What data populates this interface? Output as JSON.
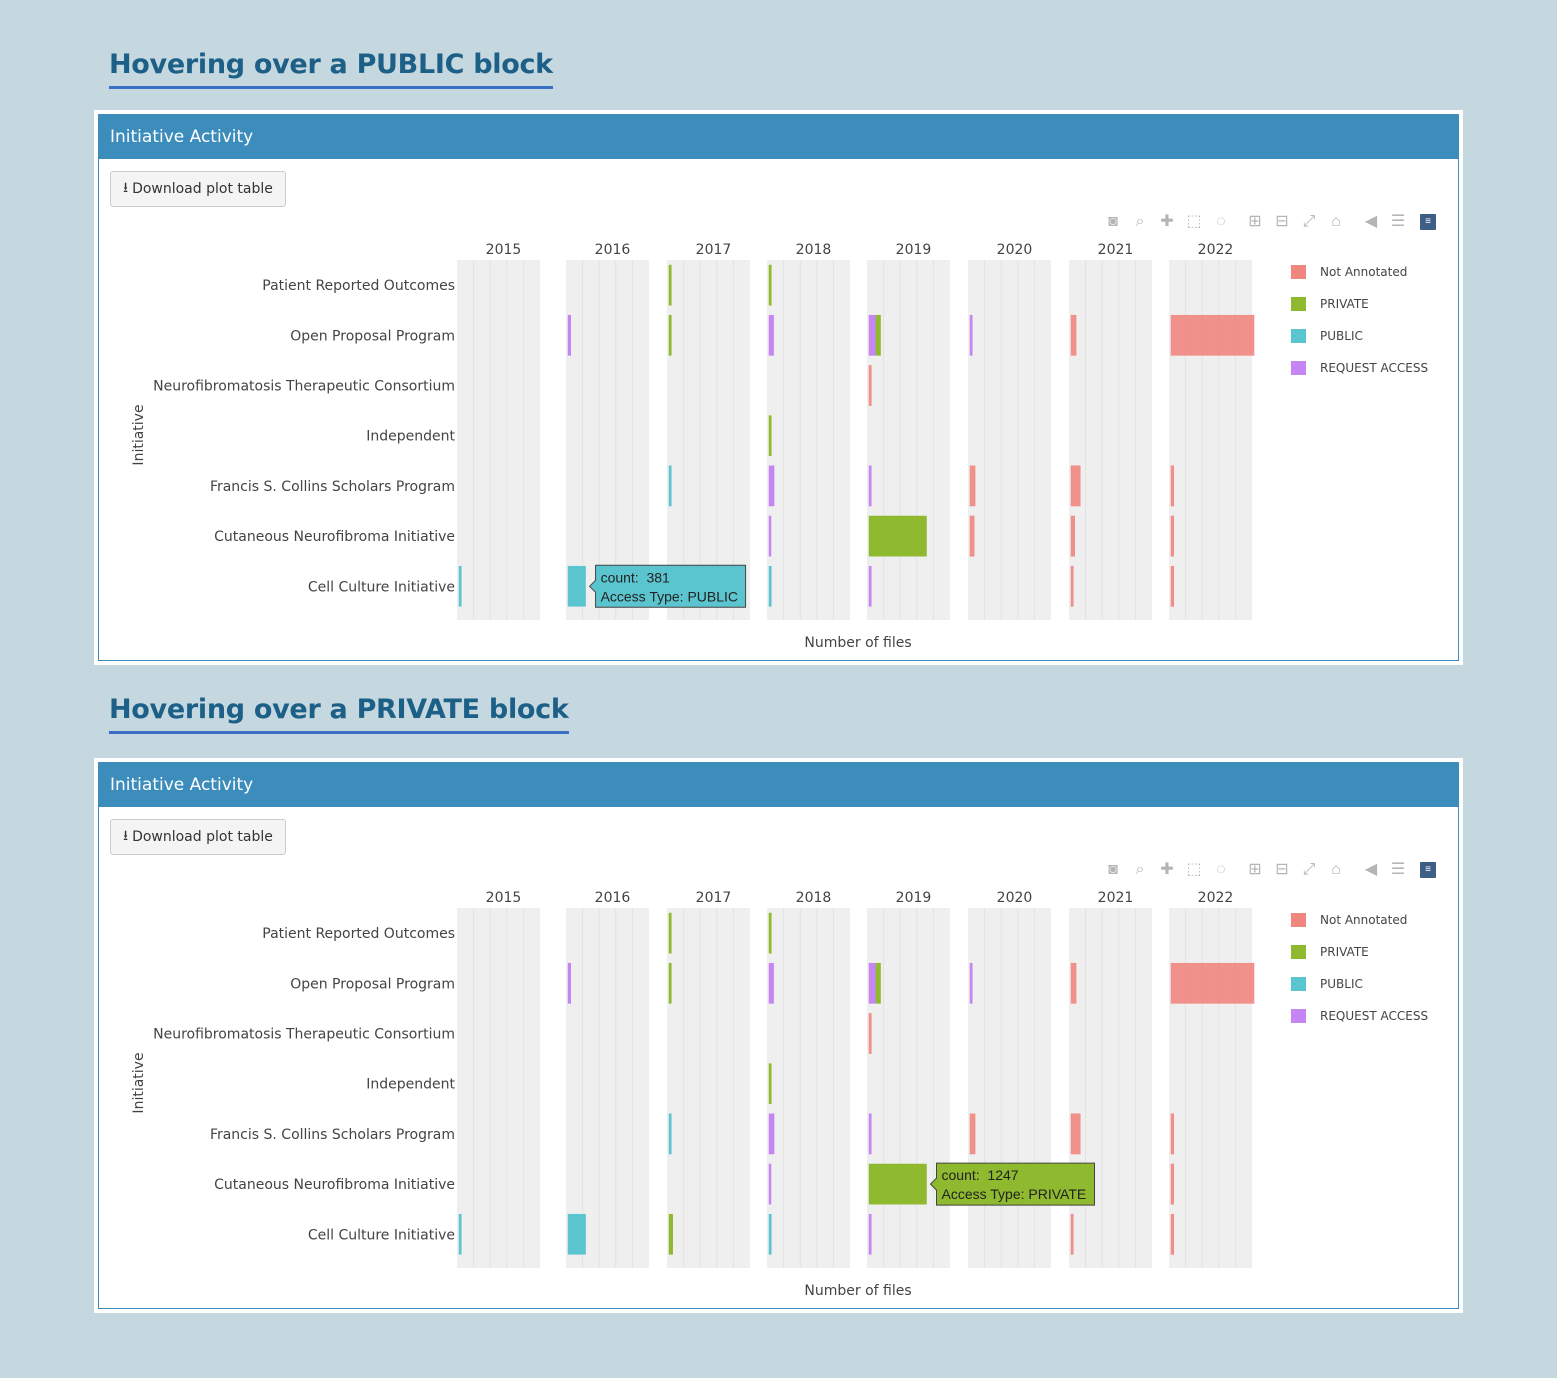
{
  "panels": [
    {
      "heading": "Hovering over a PUBLIC block",
      "title": "Initiative Activity",
      "download_label": "Download plot table",
      "tooltip": {
        "count_label": "count:",
        "count_value": "381",
        "access_label": "Access Type:",
        "access_value": "PUBLIC",
        "facet": "2016",
        "row": "Cell Culture Initiative"
      }
    },
    {
      "heading": "Hovering over a PRIVATE block",
      "title": "Initiative Activity",
      "download_label": "Download plot table",
      "tooltip": {
        "count_label": "count:",
        "count_value": "1247",
        "access_label": "Access Type:",
        "access_value": "PRIVATE",
        "facet": "2019",
        "row": "Cutaneous Neurofibroma Initiative"
      }
    }
  ],
  "modebar": [
    "camera-icon",
    "zoom-icon",
    "pan-icon",
    "box-select-icon",
    "lasso-icon",
    "zoom-in-icon",
    "zoom-out-icon",
    "autoscale-icon",
    "home-icon",
    "spike-lines-icon",
    "compare-hover-icon",
    "plotly-logo-icon"
  ],
  "colors": {
    "Not Annotated": "#ef8680",
    "PRIVATE": "#8fb92e",
    "PUBLIC": "#5bc5cf",
    "REQUEST ACCESS": "#c585f2"
  },
  "chart_data": {
    "type": "bar",
    "orientation": "horizontal",
    "facets": [
      "2015",
      "2016",
      "2017",
      "2018",
      "2019",
      "2020",
      "2021",
      "2022"
    ],
    "categories": [
      "Patient Reported Outcomes",
      "Open Proposal Program",
      "Neurofibromatosis Therapeutic Consortium",
      "Independent",
      "Francis S. Collins Scholars Program",
      "Cutaneous Neurofibroma Initiative",
      "Cell Culture Initiative"
    ],
    "ylabel": "Initiative",
    "xlabel": "Number of files",
    "legend": [
      "Not Annotated",
      "PRIVATE",
      "PUBLIC",
      "REQUEST ACCESS"
    ],
    "legend_position": "right",
    "grid": true,
    "bars": [
      {
        "facet": "2015",
        "category": "Cell Culture Initiative",
        "series": "PUBLIC",
        "value": 50
      },
      {
        "facet": "2016",
        "category": "Open Proposal Program",
        "series": "REQUEST ACCESS",
        "value": 60
      },
      {
        "facet": "2016",
        "category": "Cell Culture Initiative",
        "series": "PUBLIC",
        "value": 381
      },
      {
        "facet": "2017",
        "category": "Patient Reported Outcomes",
        "series": "PRIVATE",
        "value": 50
      },
      {
        "facet": "2017",
        "category": "Open Proposal Program",
        "series": "PRIVATE",
        "value": 50
      },
      {
        "facet": "2017",
        "category": "Francis S. Collins Scholars Program",
        "series": "PUBLIC",
        "value": 50
      },
      {
        "facet": "2017",
        "category": "Cell Culture Initiative",
        "series": "PRIVATE",
        "value": 80
      },
      {
        "facet": "2018",
        "category": "Patient Reported Outcomes",
        "series": "PRIVATE",
        "value": 50
      },
      {
        "facet": "2018",
        "category": "Open Proposal Program",
        "series": "REQUEST ACCESS",
        "value": 100
      },
      {
        "facet": "2018",
        "category": "Independent",
        "series": "PRIVATE",
        "value": 50
      },
      {
        "facet": "2018",
        "category": "Francis S. Collins Scholars Program",
        "series": "REQUEST ACCESS",
        "value": 110
      },
      {
        "facet": "2018",
        "category": "Cutaneous Neurofibroma Initiative",
        "series": "REQUEST ACCESS",
        "value": 40
      },
      {
        "facet": "2018",
        "category": "Cell Culture Initiative",
        "series": "PUBLIC",
        "value": 50
      },
      {
        "facet": "2019",
        "category": "Open Proposal Program",
        "series": "REQUEST ACCESS",
        "value": 150
      },
      {
        "facet": "2019",
        "category": "Open Proposal Program",
        "series": "PRIVATE",
        "value": 100
      },
      {
        "facet": "2019",
        "category": "Neurofibromatosis Therapeutic Consortium",
        "series": "Not Annotated",
        "value": 50
      },
      {
        "facet": "2019",
        "category": "Francis S. Collins Scholars Program",
        "series": "REQUEST ACCESS",
        "value": 50
      },
      {
        "facet": "2019",
        "category": "Cutaneous Neurofibroma Initiative",
        "series": "PRIVATE",
        "value": 1247
      },
      {
        "facet": "2019",
        "category": "Cell Culture Initiative",
        "series": "REQUEST ACCESS",
        "value": 50
      },
      {
        "facet": "2020",
        "category": "Open Proposal Program",
        "series": "REQUEST ACCESS",
        "value": 50
      },
      {
        "facet": "2020",
        "category": "Francis S. Collins Scholars Program",
        "series": "Not Annotated",
        "value": 110
      },
      {
        "facet": "2020",
        "category": "Cutaneous Neurofibroma Initiative",
        "series": "Not Annotated",
        "value": 90
      },
      {
        "facet": "2021",
        "category": "Open Proposal Program",
        "series": "Not Annotated",
        "value": 110
      },
      {
        "facet": "2021",
        "category": "Francis S. Collins Scholars Program",
        "series": "Not Annotated",
        "value": 200
      },
      {
        "facet": "2021",
        "category": "Cutaneous Neurofibroma Initiative",
        "series": "Not Annotated",
        "value": 80
      },
      {
        "facet": "2021",
        "category": "Cell Culture Initiative",
        "series": "Not Annotated",
        "value": 50
      },
      {
        "facet": "2022",
        "category": "Open Proposal Program",
        "series": "Not Annotated",
        "value": 1800
      },
      {
        "facet": "2022",
        "category": "Francis S. Collins Scholars Program",
        "series": "Not Annotated",
        "value": 60
      },
      {
        "facet": "2022",
        "category": "Cutaneous Neurofibroma Initiative",
        "series": "Not Annotated",
        "value": 60
      },
      {
        "facet": "2022",
        "category": "Cell Culture Initiative",
        "series": "Not Annotated",
        "value": 60
      }
    ]
  }
}
